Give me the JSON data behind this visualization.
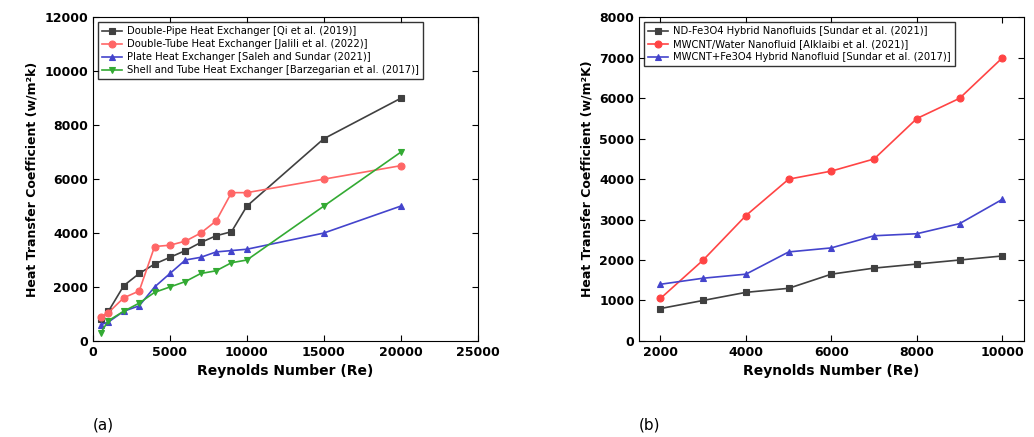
{
  "plot_a": {
    "series": [
      {
        "label": "Double-Pipe Heat Exchanger [Qi et al. (2019)]",
        "color": "#404040",
        "marker": "s",
        "markerfc": "#404040",
        "x": [
          500,
          1000,
          2000,
          3000,
          4000,
          5000,
          6000,
          7000,
          8000,
          9000,
          10000,
          15000,
          20000
        ],
        "y": [
          800,
          1100,
          2050,
          2500,
          2850,
          3100,
          3350,
          3650,
          3900,
          4050,
          5000,
          7500,
          9000
        ]
      },
      {
        "label": "Double-Tube Heat Exchanger [Jalili et al. (2022)]",
        "color": "#FF6666",
        "marker": "o",
        "markerfc": "#FF6666",
        "x": [
          500,
          1000,
          2000,
          3000,
          4000,
          5000,
          6000,
          7000,
          8000,
          9000,
          10000,
          15000,
          20000
        ],
        "y": [
          900,
          1050,
          1600,
          1850,
          3500,
          3550,
          3700,
          4000,
          4450,
          5500,
          5500,
          6000,
          6500
        ]
      },
      {
        "label": "Plate Heat Exchanger [Saleh and Sundar (2021)]",
        "color": "#4444CC",
        "marker": "^",
        "markerfc": "#4444CC",
        "x": [
          500,
          1000,
          2000,
          3000,
          4000,
          5000,
          6000,
          7000,
          8000,
          9000,
          10000,
          15000,
          20000
        ],
        "y": [
          600,
          700,
          1100,
          1300,
          2000,
          2500,
          3000,
          3100,
          3300,
          3350,
          3400,
          4000,
          5000
        ]
      },
      {
        "label": "Shell and Tube Heat Exchanger [Barzegarian et al. (2017)]",
        "color": "#33AA33",
        "marker": "v",
        "markerfc": "#33AA33",
        "x": [
          500,
          1000,
          2000,
          3000,
          4000,
          5000,
          6000,
          7000,
          8000,
          9000,
          10000,
          15000,
          20000
        ],
        "y": [
          300,
          750,
          1100,
          1400,
          1800,
          2000,
          2200,
          2500,
          2600,
          2900,
          3000,
          5000,
          7000
        ]
      }
    ],
    "xlabel": "Reynolds Number (Re)",
    "ylabel": "Heat Transfer Coefficient (w/m²k)",
    "xlim": [
      0,
      23000
    ],
    "ylim": [
      0,
      12000
    ],
    "xticks": [
      0,
      5000,
      10000,
      15000,
      20000,
      25000
    ],
    "yticks": [
      0,
      2000,
      4000,
      6000,
      8000,
      10000,
      12000
    ],
    "sublabel": "(a)"
  },
  "plot_b": {
    "series": [
      {
        "label": "ND-Fe3O4 Hybrid Nanofluids [Sundar et al. (2021)]",
        "color": "#404040",
        "marker": "s",
        "markerfc": "#404040",
        "x": [
          2000,
          3000,
          4000,
          5000,
          6000,
          7000,
          8000,
          9000,
          10000
        ],
        "y": [
          800,
          1000,
          1200,
          1300,
          1650,
          1800,
          1900,
          2000,
          2100
        ]
      },
      {
        "label": "MWCNT/Water Nanofluid [Alklaibi et al. (2021)]",
        "color": "#FF4444",
        "marker": "o",
        "markerfc": "#FF4444",
        "x": [
          2000,
          3000,
          4000,
          5000,
          6000,
          7000,
          8000,
          9000,
          10000
        ],
        "y": [
          1050,
          2000,
          3100,
          4000,
          4200,
          4500,
          5500,
          6000,
          7000
        ]
      },
      {
        "label": "MWCNT+Fe3O4 Hybrid Nanofluid [Sundar et al. (2017)]",
        "color": "#4444CC",
        "marker": "^",
        "markerfc": "#4444CC",
        "x": [
          2000,
          3000,
          4000,
          5000,
          6000,
          7000,
          8000,
          9000,
          10000
        ],
        "y": [
          1400,
          1550,
          1650,
          2200,
          2300,
          2600,
          2650,
          2900,
          3500
        ]
      }
    ],
    "xlabel": "Reynolds Number (Re)",
    "ylabel": "Heat Transfer Coefficient (w/m²K)",
    "xlim": [
      1500,
      10500
    ],
    "ylim": [
      0,
      8000
    ],
    "xticks": [
      2000,
      4000,
      6000,
      8000,
      10000
    ],
    "yticks": [
      0,
      1000,
      2000,
      3000,
      4000,
      5000,
      6000,
      7000,
      8000
    ],
    "sublabel": "(b)"
  }
}
